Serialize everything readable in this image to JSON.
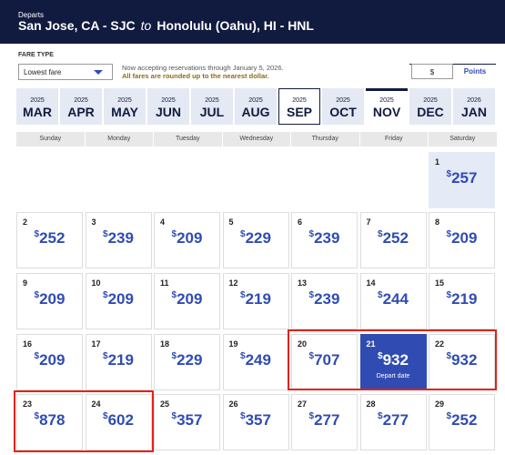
{
  "header": {
    "label": "Departs",
    "origin": "San Jose, CA - SJC",
    "connector": "to",
    "destination": "Honolulu (Oahu), HI - HNL"
  },
  "fare_type": {
    "label": "FARE TYPE",
    "selected": "Lowest fare"
  },
  "notice": {
    "line1": "Now accepting reservations through January 5, 2026.",
    "line2": "All fares are rounded up to the nearest dollar."
  },
  "currency_toggle": {
    "options": [
      "$",
      "Points"
    ],
    "selected": 0
  },
  "months": [
    {
      "year": "2025",
      "month": "MAR"
    },
    {
      "year": "2025",
      "month": "APR"
    },
    {
      "year": "2025",
      "month": "MAY"
    },
    {
      "year": "2025",
      "month": "JUN"
    },
    {
      "year": "2025",
      "month": "JUL"
    },
    {
      "year": "2025",
      "month": "AUG"
    },
    {
      "year": "2025",
      "month": "SEP"
    },
    {
      "year": "2025",
      "month": "OCT"
    },
    {
      "year": "2025",
      "month": "NOV"
    },
    {
      "year": "2025",
      "month": "DEC"
    },
    {
      "year": "2026",
      "month": "JAN"
    }
  ],
  "active_month": 8,
  "weekdays": [
    "Sunday",
    "Monday",
    "Tuesday",
    "Wednesday",
    "Thursday",
    "Friday",
    "Saturday"
  ],
  "currency": "$",
  "depart_date_label": "Depart date",
  "selected_date": 21,
  "days": [
    {
      "date": 1,
      "fare": 257
    },
    {
      "date": 2,
      "fare": 252
    },
    {
      "date": 3,
      "fare": 239
    },
    {
      "date": 4,
      "fare": 209
    },
    {
      "date": 5,
      "fare": 229
    },
    {
      "date": 6,
      "fare": 239
    },
    {
      "date": 7,
      "fare": 252
    },
    {
      "date": 8,
      "fare": 209
    },
    {
      "date": 9,
      "fare": 209
    },
    {
      "date": 10,
      "fare": 209
    },
    {
      "date": 11,
      "fare": 209
    },
    {
      "date": 12,
      "fare": 219
    },
    {
      "date": 13,
      "fare": 239
    },
    {
      "date": 14,
      "fare": 244
    },
    {
      "date": 15,
      "fare": 219
    },
    {
      "date": 16,
      "fare": 209
    },
    {
      "date": 17,
      "fare": 219
    },
    {
      "date": 18,
      "fare": 229
    },
    {
      "date": 19,
      "fare": 249
    },
    {
      "date": 20,
      "fare": 707
    },
    {
      "date": 21,
      "fare": 932
    },
    {
      "date": 22,
      "fare": 932
    },
    {
      "date": 23,
      "fare": 878
    },
    {
      "date": 24,
      "fare": 602
    },
    {
      "date": 25,
      "fare": 357
    },
    {
      "date": 26,
      "fare": 357
    },
    {
      "date": 27,
      "fare": 277
    },
    {
      "date": 28,
      "fare": 277
    },
    {
      "date": 29,
      "fare": 252
    }
  ]
}
